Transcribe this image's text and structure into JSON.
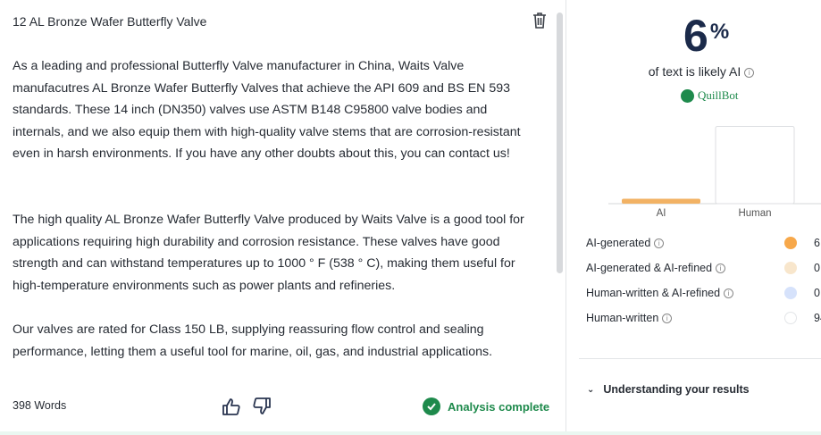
{
  "document": {
    "title": "12 AL Bronze Wafer Butterfly Valve",
    "paragraphs": [
      "As a leading and professional Butterfly Valve manufacturer in China, Waits Valve manufacutres AL Bronze Wafer Butterfly Valves that achieve the API 609 and BS EN 593 standards. These 14 inch (DN350) valves use ASTM B148 C95800 valve bodies and internals, and we also equip them with high-quality valve stems that are corrosion-resistant even in harsh environments. If you have any other doubts about this, you can contact us!",
      "The high quality AL Bronze Wafer Butterfly Valve produced by Waits Valve is a good tool for applications requiring  high durability and corrosion resistance. These valves have good strength and can withstand temperatures up to 1000 ° F (538 ° C), making them useful for high-temperature environments such as power plants and refineries.",
      "Our valves are rated for Class 150 LB, supplying reassuring flow control and sealing performance, letting  them a useful tool for marine, oil, gas, and industrial applications."
    ]
  },
  "footer": {
    "word_count": "398 Words",
    "status": "Analysis complete"
  },
  "result": {
    "percent": "6",
    "percent_sign": "%",
    "caption": "of text is likely AI",
    "brand": "QuillBot",
    "legend": [
      {
        "label": "AI-generated",
        "value": "6",
        "color": "#f7a84a"
      },
      {
        "label": "AI-generated & AI-refined",
        "value": "0",
        "color": "#f8e6cc"
      },
      {
        "label": "Human-written & AI-refined",
        "value": "0",
        "color": "#d6e2fb"
      },
      {
        "label": "Human-written",
        "value": "94",
        "color": "#ffffff"
      }
    ],
    "understanding": "Understanding your results"
  },
  "chart_data": {
    "type": "bar",
    "categories": [
      "AI",
      "Human"
    ],
    "values": [
      6,
      94
    ],
    "colors": [
      "#f2b264",
      "#ffffff"
    ],
    "ylim": [
      0,
      100
    ]
  }
}
